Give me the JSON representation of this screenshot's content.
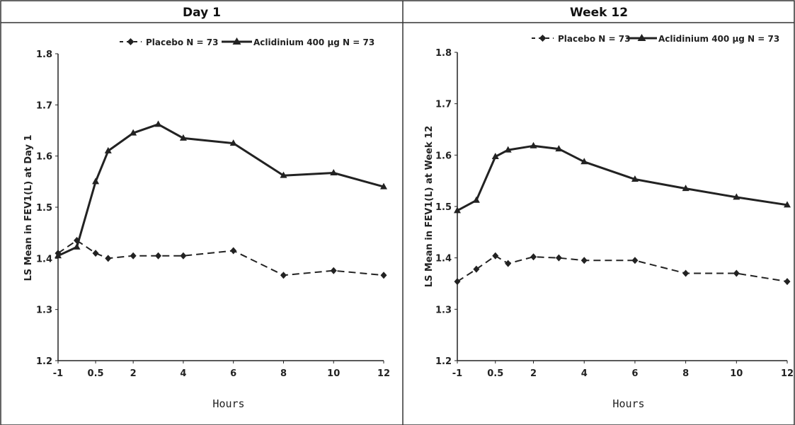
{
  "chart_data": [
    {
      "type": "line",
      "title": "Day 1",
      "xlabel": "Hours",
      "ylabel": "LS Mean in FEV1(L) at Day 1",
      "ylim": [
        1.2,
        1.8
      ],
      "yticks": [
        "1.2",
        "1.3",
        "1.4",
        "1.5",
        "1.6",
        "1.7",
        "1.8"
      ],
      "xticks": [
        "-1",
        "0.5",
        "2",
        "4",
        "6",
        "8",
        "10",
        "12"
      ],
      "grid": false,
      "legend": "top",
      "series": [
        {
          "name": "Placebo N = 73",
          "style": "dashed",
          "marker": "diamond",
          "x": [
            -1,
            -0.25,
            0.5,
            1,
            2,
            3,
            4,
            6,
            8,
            10,
            12
          ],
          "y": [
            1.41,
            1.435,
            1.41,
            1.4,
            1.405,
            1.405,
            1.405,
            1.415,
            1.367,
            1.376,
            1.367
          ]
        },
        {
          "name": "Aclidinium 400 µg N = 73",
          "style": "solid",
          "marker": "triangle",
          "x": [
            -1,
            -0.25,
            0.5,
            1,
            2,
            3,
            4,
            6,
            8,
            10,
            12
          ],
          "y": [
            1.405,
            1.422,
            1.55,
            1.61,
            1.645,
            1.662,
            1.635,
            1.625,
            1.562,
            1.567,
            1.54
          ]
        }
      ]
    },
    {
      "type": "line",
      "title": "Week 12",
      "xlabel": "Hours",
      "ylabel": "LS Mean in FEV1(L) at Week 12",
      "ylim": [
        1.2,
        1.8
      ],
      "yticks": [
        "1.2",
        "1.3",
        "1.4",
        "1.5",
        "1.6",
        "1.7",
        "1.8"
      ],
      "xticks": [
        "-1",
        "0.5",
        "2",
        "4",
        "6",
        "8",
        "10",
        "12"
      ],
      "grid": false,
      "legend": "top",
      "series": [
        {
          "name": "Placebo N = 73",
          "style": "dashed",
          "marker": "diamond",
          "x": [
            -1,
            -0.25,
            0.5,
            1,
            2,
            3,
            4,
            6,
            8,
            10,
            12
          ],
          "y": [
            1.354,
            1.378,
            1.404,
            1.389,
            1.402,
            1.4,
            1.395,
            1.395,
            1.37,
            1.37,
            1.354
          ]
        },
        {
          "name": "Aclidinium 400 µg N = 73",
          "style": "solid",
          "marker": "triangle",
          "x": [
            -1,
            -0.25,
            0.5,
            1,
            2,
            3,
            4,
            6,
            8,
            10,
            12
          ],
          "y": [
            1.492,
            1.512,
            1.597,
            1.61,
            1.618,
            1.612,
            1.587,
            1.553,
            1.535,
            1.518,
            1.503
          ]
        }
      ]
    }
  ]
}
